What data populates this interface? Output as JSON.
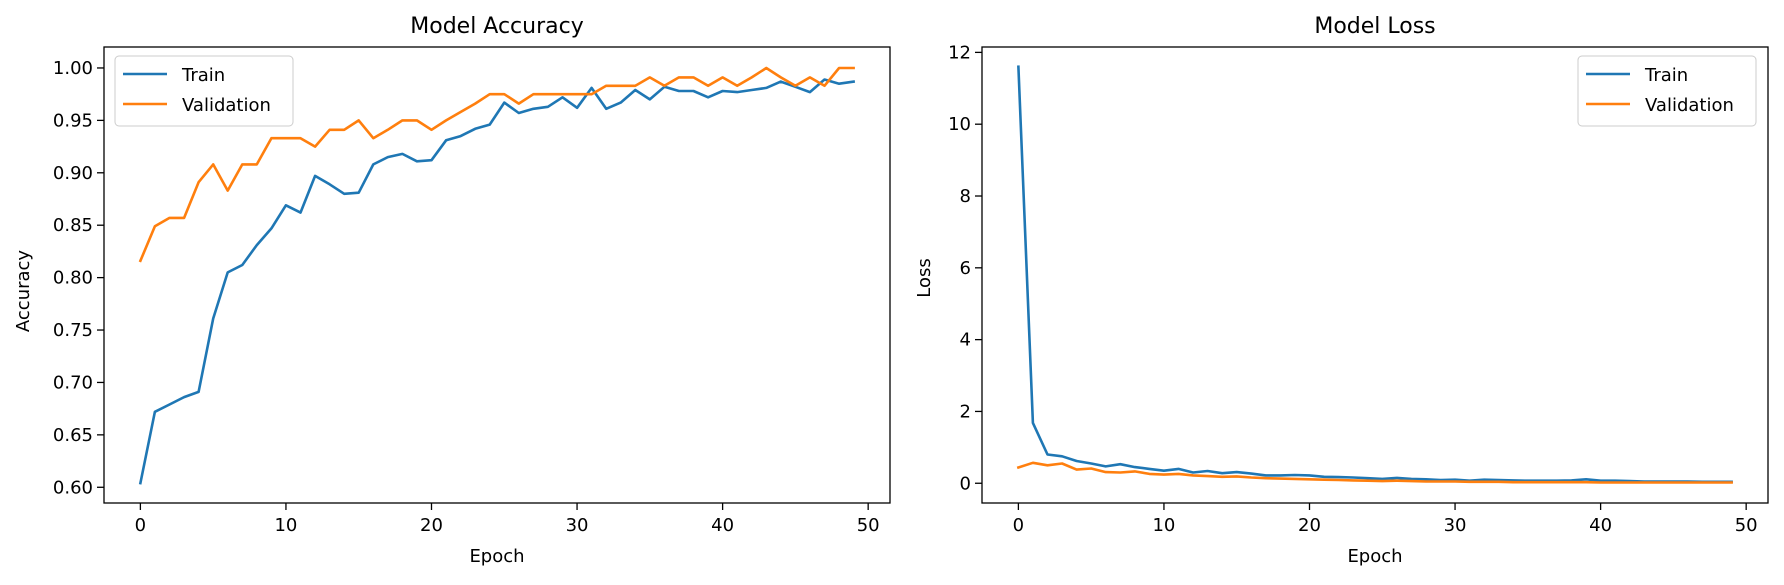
{
  "colors": {
    "train": "#1f77b4",
    "validation": "#ff7f0e"
  },
  "chart_data": [
    {
      "type": "line",
      "title": "Model Accuracy",
      "xlabel": "Epoch",
      "ylabel": "Accuracy",
      "xlim": [
        -2.5,
        51.5
      ],
      "ylim": [
        0.585,
        1.02
      ],
      "xticks": [
        0,
        10,
        20,
        30,
        40,
        50
      ],
      "xtick_labels": [
        "0",
        "10",
        "20",
        "30",
        "40",
        "50"
      ],
      "yticks": [
        0.6,
        0.65,
        0.7,
        0.75,
        0.8,
        0.85,
        0.9,
        0.95,
        1.0
      ],
      "ytick_labels": [
        "0.60",
        "0.65",
        "0.70",
        "0.75",
        "0.80",
        "0.85",
        "0.90",
        "0.95",
        "1.00"
      ],
      "grid": false,
      "legend_position": "top-left",
      "series": [
        {
          "name": "Train",
          "color": "#1f77b4",
          "x": [
            0,
            1,
            2,
            3,
            4,
            5,
            6,
            7,
            8,
            9,
            10,
            11,
            12,
            13,
            14,
            15,
            16,
            17,
            18,
            19,
            20,
            21,
            22,
            23,
            24,
            25,
            26,
            27,
            28,
            29,
            30,
            31,
            32,
            33,
            34,
            35,
            36,
            37,
            38,
            39,
            40,
            41,
            42,
            43,
            44,
            45,
            46,
            47,
            48,
            49
          ],
          "values": [
            0.604,
            0.672,
            0.679,
            0.686,
            0.691,
            0.761,
            0.805,
            0.812,
            0.831,
            0.847,
            0.869,
            0.862,
            0.897,
            0.889,
            0.88,
            0.881,
            0.908,
            0.915,
            0.918,
            0.911,
            0.912,
            0.931,
            0.935,
            0.942,
            0.946,
            0.967,
            0.957,
            0.961,
            0.963,
            0.972,
            0.962,
            0.981,
            0.961,
            0.967,
            0.979,
            0.97,
            0.982,
            0.978,
            0.978,
            0.972,
            0.978,
            0.977,
            0.979,
            0.981,
            0.987,
            0.982,
            0.977,
            0.989,
            0.985,
            0.987
          ]
        },
        {
          "name": "Validation",
          "color": "#ff7f0e",
          "x": [
            0,
            1,
            2,
            3,
            4,
            5,
            6,
            7,
            8,
            9,
            10,
            11,
            12,
            13,
            14,
            15,
            16,
            17,
            18,
            19,
            20,
            21,
            22,
            23,
            24,
            25,
            26,
            27,
            28,
            29,
            30,
            31,
            32,
            33,
            34,
            35,
            36,
            37,
            38,
            39,
            40,
            41,
            42,
            43,
            44,
            45,
            46,
            47,
            48,
            49
          ],
          "values": [
            0.816,
            0.849,
            0.857,
            0.857,
            0.891,
            0.908,
            0.883,
            0.908,
            0.908,
            0.933,
            0.933,
            0.933,
            0.925,
            0.941,
            0.941,
            0.95,
            0.933,
            0.941,
            0.95,
            0.95,
            0.941,
            0.95,
            0.958,
            0.966,
            0.975,
            0.975,
            0.966,
            0.975,
            0.975,
            0.975,
            0.975,
            0.975,
            0.983,
            0.983,
            0.983,
            0.991,
            0.983,
            0.991,
            0.991,
            0.983,
            0.991,
            0.983,
            0.991,
            1.0,
            0.991,
            0.983,
            0.991,
            0.983,
            1.0,
            1.0
          ]
        }
      ]
    },
    {
      "type": "line",
      "title": "Model Loss",
      "xlabel": "Epoch",
      "ylabel": "Loss",
      "xlim": [
        -2.5,
        51.5
      ],
      "ylim": [
        -0.55,
        12.15
      ],
      "xticks": [
        0,
        10,
        20,
        30,
        40,
        50
      ],
      "xtick_labels": [
        "0",
        "10",
        "20",
        "30",
        "40",
        "50"
      ],
      "yticks": [
        0,
        2,
        4,
        6,
        8,
        10,
        12
      ],
      "ytick_labels": [
        "0",
        "2",
        "4",
        "6",
        "8",
        "10",
        "12"
      ],
      "grid": false,
      "legend_position": "top-right",
      "series": [
        {
          "name": "Train",
          "color": "#1f77b4",
          "x": [
            0,
            1,
            2,
            3,
            4,
            5,
            6,
            7,
            8,
            9,
            10,
            11,
            12,
            13,
            14,
            15,
            16,
            17,
            18,
            19,
            20,
            21,
            22,
            23,
            24,
            25,
            26,
            27,
            28,
            29,
            30,
            31,
            32,
            33,
            34,
            35,
            36,
            37,
            38,
            39,
            40,
            41,
            42,
            43,
            44,
            45,
            46,
            47,
            48,
            49
          ],
          "values": [
            11.6,
            1.68,
            0.8,
            0.75,
            0.62,
            0.55,
            0.47,
            0.53,
            0.45,
            0.4,
            0.35,
            0.4,
            0.3,
            0.34,
            0.28,
            0.31,
            0.27,
            0.22,
            0.22,
            0.23,
            0.22,
            0.18,
            0.17,
            0.16,
            0.14,
            0.12,
            0.15,
            0.12,
            0.11,
            0.09,
            0.1,
            0.07,
            0.1,
            0.09,
            0.08,
            0.07,
            0.07,
            0.07,
            0.08,
            0.11,
            0.07,
            0.07,
            0.06,
            0.05,
            0.05,
            0.05,
            0.05,
            0.04,
            0.04,
            0.04
          ]
        },
        {
          "name": "Validation",
          "color": "#ff7f0e",
          "x": [
            0,
            1,
            2,
            3,
            4,
            5,
            6,
            7,
            8,
            9,
            10,
            11,
            12,
            13,
            14,
            15,
            16,
            17,
            18,
            19,
            20,
            21,
            22,
            23,
            24,
            25,
            26,
            27,
            28,
            29,
            30,
            31,
            32,
            33,
            34,
            35,
            36,
            37,
            38,
            39,
            40,
            41,
            42,
            43,
            44,
            45,
            46,
            47,
            48,
            49
          ],
          "values": [
            0.44,
            0.57,
            0.5,
            0.55,
            0.38,
            0.41,
            0.31,
            0.3,
            0.33,
            0.26,
            0.24,
            0.26,
            0.22,
            0.2,
            0.18,
            0.19,
            0.16,
            0.14,
            0.13,
            0.12,
            0.11,
            0.1,
            0.09,
            0.08,
            0.07,
            0.06,
            0.07,
            0.06,
            0.05,
            0.05,
            0.05,
            0.04,
            0.04,
            0.04,
            0.03,
            0.03,
            0.03,
            0.03,
            0.03,
            0.03,
            0.02,
            0.02,
            0.02,
            0.02,
            0.02,
            0.02,
            0.02,
            0.02,
            0.02,
            0.02
          ]
        }
      ]
    }
  ]
}
